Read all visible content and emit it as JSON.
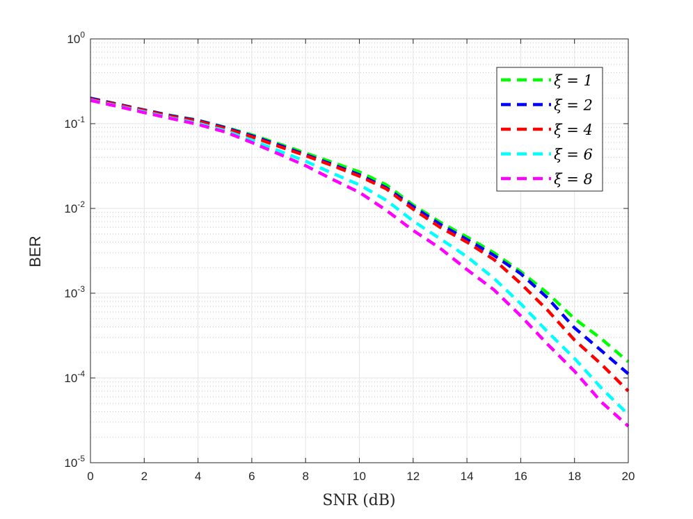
{
  "chart_data": {
    "type": "line",
    "xlabel": "SNR (dB)",
    "ylabel": "BER",
    "xlim": [
      0,
      20
    ],
    "ylim": [
      1e-05,
      1
    ],
    "yscale": "log",
    "grid": true,
    "minor_grid": true,
    "legend_position": "top-right",
    "xticks": [
      0,
      2,
      4,
      6,
      8,
      10,
      12,
      14,
      16,
      18,
      20
    ],
    "xtick_labels": [
      "0",
      "2",
      "4",
      "6",
      "8",
      "10",
      "12",
      "14",
      "16",
      "18",
      "20"
    ],
    "yticks": [
      {
        "value": 1,
        "base": "10",
        "exp": "0"
      },
      {
        "value": 0.1,
        "base": "10",
        "exp": "-1"
      },
      {
        "value": 0.01,
        "base": "10",
        "exp": "-2"
      },
      {
        "value": 0.001,
        "base": "10",
        "exp": "-3"
      },
      {
        "value": 0.0001,
        "base": "10",
        "exp": "-4"
      },
      {
        "value": 1e-05,
        "base": "10",
        "exp": "-5"
      }
    ],
    "x": [
      0,
      1,
      2,
      3,
      4,
      5,
      6,
      7,
      8,
      9,
      10,
      11,
      12,
      13,
      14,
      15,
      16,
      17,
      18,
      19,
      20
    ],
    "series": [
      {
        "name": "ξ = 1",
        "color": "#00ff00",
        "values": [
          0.2,
          0.17,
          0.145,
          0.125,
          0.11,
          0.091,
          0.074,
          0.058,
          0.045,
          0.035,
          0.027,
          0.019,
          0.011,
          0.0069,
          0.0046,
          0.003,
          0.0018,
          0.001,
          0.0005,
          0.00029,
          0.000155
        ]
      },
      {
        "name": "ξ = 2",
        "color": "#0000ff",
        "values": [
          0.2,
          0.17,
          0.145,
          0.124,
          0.109,
          0.09,
          0.072,
          0.056,
          0.043,
          0.033,
          0.025,
          0.0175,
          0.0105,
          0.0065,
          0.0043,
          0.0028,
          0.0017,
          0.00088,
          0.00039,
          0.00021,
          0.000112
        ]
      },
      {
        "name": "ξ = 4",
        "color": "#ff0000",
        "values": [
          0.195,
          0.168,
          0.143,
          0.122,
          0.107,
          0.088,
          0.07,
          0.054,
          0.042,
          0.032,
          0.024,
          0.017,
          0.0098,
          0.006,
          0.004,
          0.0025,
          0.0013,
          0.00063,
          0.00028,
          0.000145,
          7e-05
        ]
      },
      {
        "name": "ξ = 6",
        "color": "#00ffff",
        "values": [
          0.19,
          0.162,
          0.138,
          0.117,
          0.101,
          0.083,
          0.064,
          0.048,
          0.036,
          0.026,
          0.019,
          0.0125,
          0.0071,
          0.0044,
          0.0027,
          0.0015,
          0.00075,
          0.00035,
          0.00017,
          7.6e-05,
          3.7e-05
        ]
      },
      {
        "name": "ξ = 8",
        "color": "#ff00ff",
        "values": [
          0.188,
          0.16,
          0.135,
          0.115,
          0.098,
          0.08,
          0.06,
          0.044,
          0.032,
          0.022,
          0.0155,
          0.0095,
          0.0055,
          0.0034,
          0.0019,
          0.0011,
          0.00054,
          0.00025,
          0.00012,
          5.2e-05,
          2.7e-05
        ]
      }
    ]
  }
}
